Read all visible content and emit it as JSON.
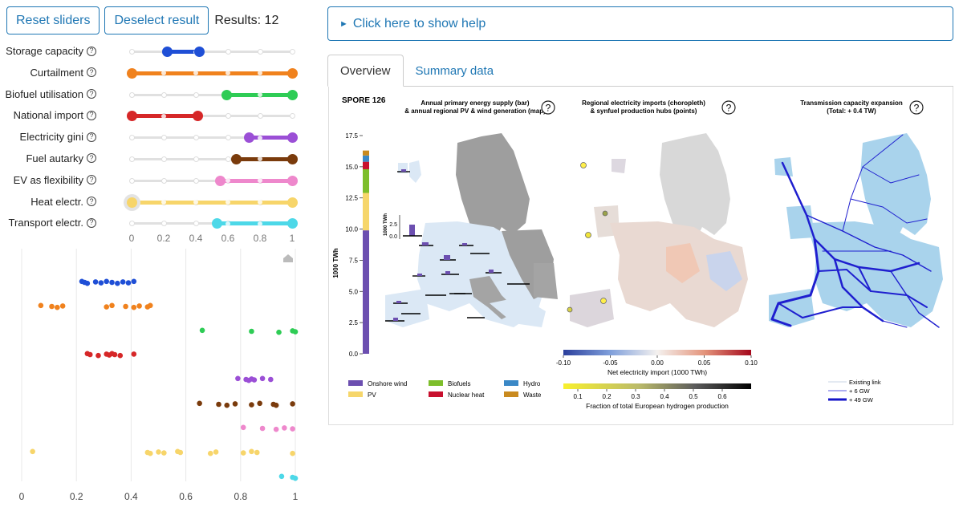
{
  "toolbar": {
    "reset_label": "Reset sliders",
    "deselect_label": "Deselect result",
    "results_label": "Results: 12"
  },
  "sliders": [
    {
      "label": "Storage capacity",
      "color": "#1f4fd6",
      "min": 0.22,
      "max": 0.42
    },
    {
      "label": "Curtailment",
      "color": "#f0821e",
      "min": 0.0,
      "max": 1.0
    },
    {
      "label": "Biofuel utilisation",
      "color": "#2ecc55",
      "min": 0.59,
      "max": 1.0
    },
    {
      "label": "National import",
      "color": "#d62728",
      "min": 0.0,
      "max": 0.41
    },
    {
      "label": "Electricity gini",
      "color": "#9b4fd6",
      "min": 0.73,
      "max": 1.0
    },
    {
      "label": "Fuel autarky",
      "color": "#7a3b0c",
      "min": 0.65,
      "max": 1.0
    },
    {
      "label": "EV as flexibility",
      "color": "#ee88cc",
      "min": 0.55,
      "max": 1.0
    },
    {
      "label": "Heat electr.",
      "color": "#f7d56a",
      "min": 0.0,
      "max": 1.0
    },
    {
      "label": "Transport electr.",
      "color": "#4dd8e8",
      "min": 0.53,
      "max": 1.0
    }
  ],
  "slider_ticks": [
    "0",
    "0.2",
    "0.4",
    "0.6",
    "0.8",
    "1"
  ],
  "scatter": {
    "x_ticks": [
      "0",
      "0.2",
      "0.4",
      "0.6",
      "0.8",
      "1"
    ],
    "home_icon": "home-icon",
    "rows": [
      {
        "color": "#1f4fd6",
        "values": [
          0.22,
          0.23,
          0.24,
          0.27,
          0.29,
          0.31,
          0.33,
          0.35,
          0.37,
          0.39,
          0.41
        ]
      },
      {
        "color": "#f0821e",
        "values": [
          0.07,
          0.11,
          0.13,
          0.15,
          0.31,
          0.33,
          0.38,
          0.41,
          0.43,
          0.46,
          0.47
        ]
      },
      {
        "color": "#2ecc55",
        "values": [
          0.66,
          0.84,
          0.94,
          0.99,
          1.0
        ]
      },
      {
        "color": "#d62728",
        "values": [
          0.24,
          0.25,
          0.28,
          0.31,
          0.32,
          0.33,
          0.34,
          0.36,
          0.41
        ]
      },
      {
        "color": "#9b4fd6",
        "values": [
          0.79,
          0.82,
          0.83,
          0.84,
          0.85,
          0.88,
          0.91
        ]
      },
      {
        "color": "#7a3b0c",
        "values": [
          0.65,
          0.72,
          0.75,
          0.78,
          0.84,
          0.87,
          0.92,
          0.93,
          0.99
        ]
      },
      {
        "color": "#ee88cc",
        "values": [
          0.81,
          0.88,
          0.93,
          0.96,
          0.99
        ]
      },
      {
        "color": "#f7d56a",
        "values": [
          0.04,
          0.46,
          0.47,
          0.5,
          0.52,
          0.57,
          0.58,
          0.69,
          0.71,
          0.81,
          0.84,
          0.86,
          0.99
        ]
      },
      {
        "color": "#4dd8e8",
        "values": [
          0.95,
          0.99,
          1.0
        ]
      }
    ]
  },
  "help": {
    "label": "Click here to show help"
  },
  "tabs": [
    {
      "label": "Overview",
      "active": true
    },
    {
      "label": "Summary data",
      "active": false
    }
  ],
  "overview": {
    "spore_title": "SPORE 126",
    "panel1_title_l1": "Annual primary energy supply (bar)",
    "panel1_title_l2": "& annual regional PV & wind generation (map)",
    "panel2_title_l1": "Regional electricity imports (choropleth)",
    "panel2_title_l2": "& synfuel production hubs (points)",
    "panel3_title_l1": "Transmission capacity expansion",
    "panel3_title_l2": "(Total: + 0.4 TW)",
    "y_label": "1000 TWh",
    "y_ticks": [
      "0.0",
      "2.5",
      "5.0",
      "7.5",
      "10.0",
      "12.5",
      "15.0",
      "17.5"
    ],
    "inset_label": "1000 TWh",
    "inset_ticks": [
      "2.5",
      "0.0"
    ],
    "legend": [
      "Onshore wind",
      "PV",
      "Biofuels",
      "Nuclear heat",
      "Hydro",
      "Waste"
    ],
    "import_ticks": [
      "-0.10",
      "-0.05",
      "0.00",
      "0.05",
      "0.10"
    ],
    "import_label": "Net electricity import (1000 TWh)",
    "hydrogen_ticks": [
      "0.1",
      "0.2",
      "0.3",
      "0.4",
      "0.5",
      "0.6"
    ],
    "hydrogen_label": "Fraction of total European hydrogen production",
    "tx_legend": [
      "Existing link",
      "+ 6 GW",
      "+ 49 GW"
    ]
  },
  "chart_data": {
    "type": "bar",
    "title": "Annual primary energy supply (bar)",
    "ylabel": "1000 TWh",
    "ylim": [
      0,
      17.5
    ],
    "categories": [
      "SPORE 126"
    ],
    "series": [
      {
        "name": "Onshore wind",
        "values": [
          9.9
        ],
        "color": "#6c4fb0"
      },
      {
        "name": "PV",
        "values": [
          3.0
        ],
        "color": "#f6d66b"
      },
      {
        "name": "Biofuels",
        "values": [
          1.9
        ],
        "color": "#7dbe2b"
      },
      {
        "name": "Nuclear heat",
        "values": [
          0.6
        ],
        "color": "#c8102e"
      },
      {
        "name": "Hydro",
        "values": [
          0.5
        ],
        "color": "#3a88c6"
      },
      {
        "name": "Waste",
        "values": [
          0.4
        ],
        "color": "#c98a1f"
      }
    ]
  }
}
